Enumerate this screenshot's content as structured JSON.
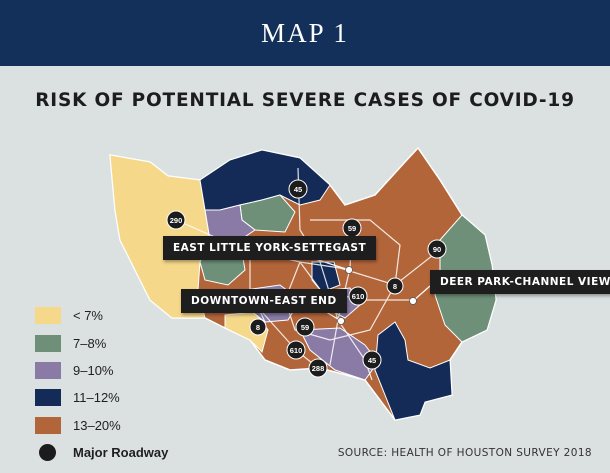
{
  "header": {
    "title": "MAP 1"
  },
  "map": {
    "title": "RISK OF POTENTIAL SEVERE CASES OF COVID-19",
    "source": "SOURCE: HEALTH OF HOUSTON SURVEY 2018",
    "colors": {
      "under7": "#f5d889",
      "p7to8": "#6e8f78",
      "p9to10": "#8a7ba6",
      "p11to12": "#142b57",
      "p13to20": "#b3653a",
      "roadway": "#1c1c1c",
      "header_bg": "#12305a",
      "background": "#dbe0e1"
    },
    "legend": [
      {
        "label": "< 7%",
        "color": "#f5d889"
      },
      {
        "label": "7–8%",
        "color": "#6e8f78"
      },
      {
        "label": "9–10%",
        "color": "#8a7ba6"
      },
      {
        "label": "11–12%",
        "color": "#142b57"
      },
      {
        "label": "13–20%",
        "color": "#b3653a"
      }
    ],
    "roadway_legend": "Major Roadway",
    "callouts": {
      "east_little_york": "EAST LITTLE YORK-SETTEGAST",
      "downtown": "DOWNTOWN-EAST END",
      "deer_park": "DEER PARK-CHANNEL VIEW"
    },
    "highways": {
      "h45n": "45",
      "h290": "290",
      "h59n": "59",
      "h90": "90",
      "h8e": "8",
      "h610": "610",
      "h8w": "8",
      "h59s": "59",
      "h610s": "610",
      "h288": "288",
      "h45s": "45"
    }
  }
}
